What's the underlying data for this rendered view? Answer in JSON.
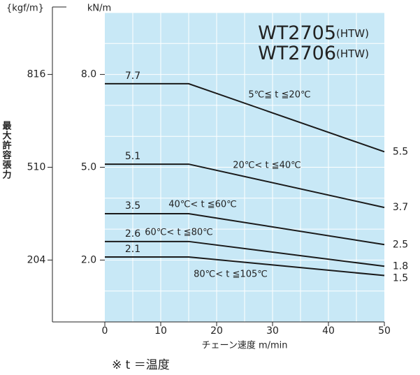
{
  "chart_data": {
    "type": "line",
    "title": [
      "WT2705",
      "WT2706"
    ],
    "title_suffix": "(HTW)",
    "y_label": "最大許容張力",
    "y_unit": "kN/m",
    "y2_unit": "{kgf/m}",
    "x_label": "チェーン速度 m/min",
    "note": "※ t ＝温度",
    "x": [
      0,
      15,
      50
    ],
    "xlim": [
      0,
      50
    ],
    "xticks": [
      0,
      10,
      20,
      30,
      40,
      50
    ],
    "ylim": [
      0,
      10
    ],
    "yticks": [
      {
        "value": 8,
        "label": "8.0"
      },
      {
        "value": 5,
        "label": "5.0"
      },
      {
        "value": 2,
        "label": "2.0"
      }
    ],
    "y2lim": [
      0,
      1020
    ],
    "y2ticks": [
      816,
      510,
      204
    ],
    "grid": true,
    "series": [
      {
        "name": "5℃≦ t ≦20℃",
        "color": "#1a1a1a",
        "values": [
          7.7,
          7.7,
          5.5
        ]
      },
      {
        "name": "20℃< t ≦40℃",
        "color": "#1a1a1a",
        "values": [
          5.1,
          5.1,
          3.7
        ]
      },
      {
        "name": "40℃< t ≦60℃",
        "color": "#1a1a1a",
        "values": [
          3.5,
          3.5,
          2.5
        ]
      },
      {
        "name": "60℃< t ≦80℃",
        "color": "#1a1a1a",
        "values": [
          2.6,
          2.6,
          1.8
        ]
      },
      {
        "name": "80℃< t ≦105℃",
        "color": "#1a1a1a",
        "values": [
          2.1,
          2.1,
          1.5
        ]
      }
    ]
  }
}
